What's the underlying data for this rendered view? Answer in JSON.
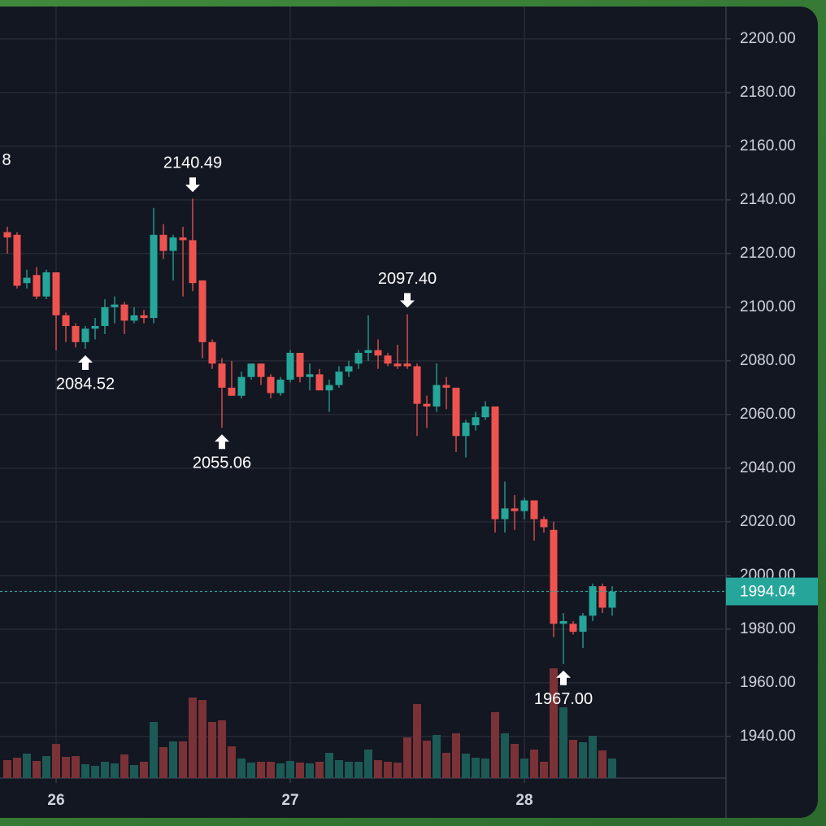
{
  "chart_data": {
    "type": "candlestick",
    "x": [
      25.7917,
      25.8333,
      25.875,
      25.9167,
      25.9583,
      26,
      26.0417,
      26.0833,
      26.125,
      26.1667,
      26.2083,
      26.25,
      26.2917,
      26.3333,
      26.375,
      26.4167,
      26.4583,
      26.5,
      26.5417,
      26.5833,
      26.625,
      26.6667,
      26.7083,
      26.75,
      26.7917,
      26.8333,
      26.875,
      26.9167,
      26.9583,
      27,
      27.0417,
      27.0833,
      27.125,
      27.1667,
      27.2083,
      27.25,
      27.2917,
      27.3333,
      27.375,
      27.4167,
      27.4583,
      27.5,
      27.5417,
      27.5833,
      27.625,
      27.6667,
      27.7083,
      27.75,
      27.7917,
      27.8333,
      27.875,
      27.9167,
      27.9583,
      28,
      28.0417,
      28.0833,
      28.125,
      28.1667,
      28.2083,
      28.25,
      28.2917,
      28.3333,
      28.375
    ],
    "open": [
      2128,
      2127,
      2109,
      2112,
      2104,
      2113,
      2097,
      2093,
      2087,
      2092,
      2093,
      2100,
      2101,
      2095,
      2097,
      2096,
      2127,
      2121,
      2126,
      2125,
      2110,
      2087,
      2079,
      2070,
      2067,
      2074,
      2079,
      2074,
      2068,
      2073,
      2083,
      2074,
      2075,
      2069,
      2071,
      2076,
      2079,
      2083,
      2084,
      2082,
      2079,
      2079,
      2078,
      2064,
      2063,
      2071,
      2070,
      2052,
      2056,
      2059,
      2063,
      2021,
      2025,
      2024,
      2028,
      2021,
      2017,
      1982,
      1982,
      1979,
      1985,
      1996,
      1988
    ],
    "high": [
      2130,
      2128,
      2114,
      2115,
      2114,
      2113,
      2098,
      2094,
      2093,
      2096,
      2103,
      2104,
      2102,
      2100,
      2099,
      2137,
      2131,
      2127,
      2130,
      2140.49,
      2110,
      2088,
      2081,
      2080,
      2076,
      2079,
      2079,
      2075,
      2074,
      2084,
      2083,
      2079,
      2077,
      2073,
      2078,
      2080,
      2084,
      2097,
      2088,
      2083,
      2086,
      2097.4,
      2079,
      2067,
      2079,
      2074,
      2070,
      2058,
      2061,
      2065,
      2063,
      2035,
      2030,
      2029,
      2028,
      2022,
      2020,
      1986,
      1983,
      1986,
      1997,
      1997,
      1996
    ],
    "low": [
      2120,
      2107,
      2107,
      2103,
      2103,
      2084,
      2087,
      2085,
      2084.52,
      2088,
      2090,
      2094,
      2090,
      2094,
      2094,
      2094,
      2118,
      2110,
      2104,
      2106,
      2081,
      2077,
      2055.06,
      2067,
      2066,
      2073,
      2071,
      2066,
      2067,
      2072,
      2072,
      2069,
      2069,
      2061,
      2070,
      2074,
      2077,
      2080,
      2077,
      2078,
      2077,
      2077,
      2052,
      2055,
      2061,
      2062,
      2046,
      2044,
      2054,
      2058,
      2016,
      2016,
      2017,
      2021,
      2013,
      2016,
      1977,
      1967,
      1978,
      1973,
      1983,
      1986,
      1985
    ],
    "close": [
      2126,
      2108,
      2111,
      2104,
      2113,
      2097,
      2093,
      2087,
      2092,
      2093,
      2100,
      2101,
      2095,
      2097,
      2096,
      2127,
      2121,
      2126,
      2125,
      2109,
      2087,
      2079,
      2070,
      2067,
      2074,
      2079,
      2074,
      2068,
      2073,
      2083,
      2074,
      2075,
      2069,
      2071,
      2076,
      2078,
      2083,
      2084,
      2082,
      2079,
      2078,
      2078,
      2064,
      2063,
      2071,
      2070,
      2052,
      2057,
      2059,
      2063,
      2021,
      2025,
      2024,
      2028,
      2021,
      2018,
      1982,
      1983,
      1979,
      1985,
      1996,
      1988,
      1994.04
    ],
    "volume": [
      22,
      25,
      30,
      21,
      27,
      42,
      26,
      27,
      17,
      15,
      20,
      18,
      29,
      16,
      20,
      69,
      38,
      45,
      45,
      99,
      96,
      69,
      71,
      39,
      24,
      19,
      20,
      20,
      18,
      21,
      19,
      18,
      20,
      31,
      22,
      20,
      20,
      35,
      22,
      20,
      19,
      50,
      91,
      46,
      53,
      31,
      55,
      30,
      25,
      24,
      81,
      55,
      42,
      24,
      35,
      20,
      135,
      87,
      47,
      44,
      52,
      34,
      24
    ],
    "volume_ylim": [
      0,
      949
    ],
    "up_color": "#26a69a",
    "down_color": "#ef5350",
    "up_volume_color": "#1c5a56",
    "down_volume_color": "#7a3236",
    "xlim": [
      25.7604,
      28.8611
    ],
    "xticks": [
      26,
      27,
      28
    ],
    "ylim": [
      1924.5,
      2212.1
    ],
    "yticks": [
      {
        "value": 1940,
        "label": "1940.00"
      },
      {
        "value": 1960,
        "label": "1960.00"
      },
      {
        "value": 1980,
        "label": "1980.00"
      },
      {
        "value": 2000,
        "label": "2000.00"
      },
      {
        "value": 2020,
        "label": "2020.00"
      },
      {
        "value": 2040,
        "label": "2040.00"
      },
      {
        "value": 2060,
        "label": "2060.00"
      },
      {
        "value": 2080,
        "label": "2080.00"
      },
      {
        "value": 2100,
        "label": "2100.00"
      },
      {
        "value": 2120,
        "label": "2120.00"
      },
      {
        "value": 2140,
        "label": "2140.00"
      },
      {
        "value": 2160,
        "label": "2160.00"
      },
      {
        "value": 2180,
        "label": "2180.00"
      },
      {
        "value": 2200,
        "label": "2200.00"
      }
    ],
    "grid": true,
    "last_price": 1994.04,
    "annotations": [
      {
        "label": "8",
        "value": 2141.5,
        "x": 25.7882
      },
      {
        "label": "2140.49",
        "value": 2140.49,
        "x": 26.5833,
        "arrow": "down"
      },
      {
        "label": "2084.52",
        "value": 2084.52,
        "x": 26.125,
        "arrow": "up"
      },
      {
        "label": "2055.06",
        "value": 2055.06,
        "x": 26.7083,
        "arrow": "up"
      },
      {
        "label": "2097.40",
        "value": 2097.4,
        "x": 27.5,
        "arrow": "down"
      },
      {
        "label": "1967.00",
        "value": 1967,
        "x": 28.1667,
        "arrow": "up"
      }
    ]
  }
}
